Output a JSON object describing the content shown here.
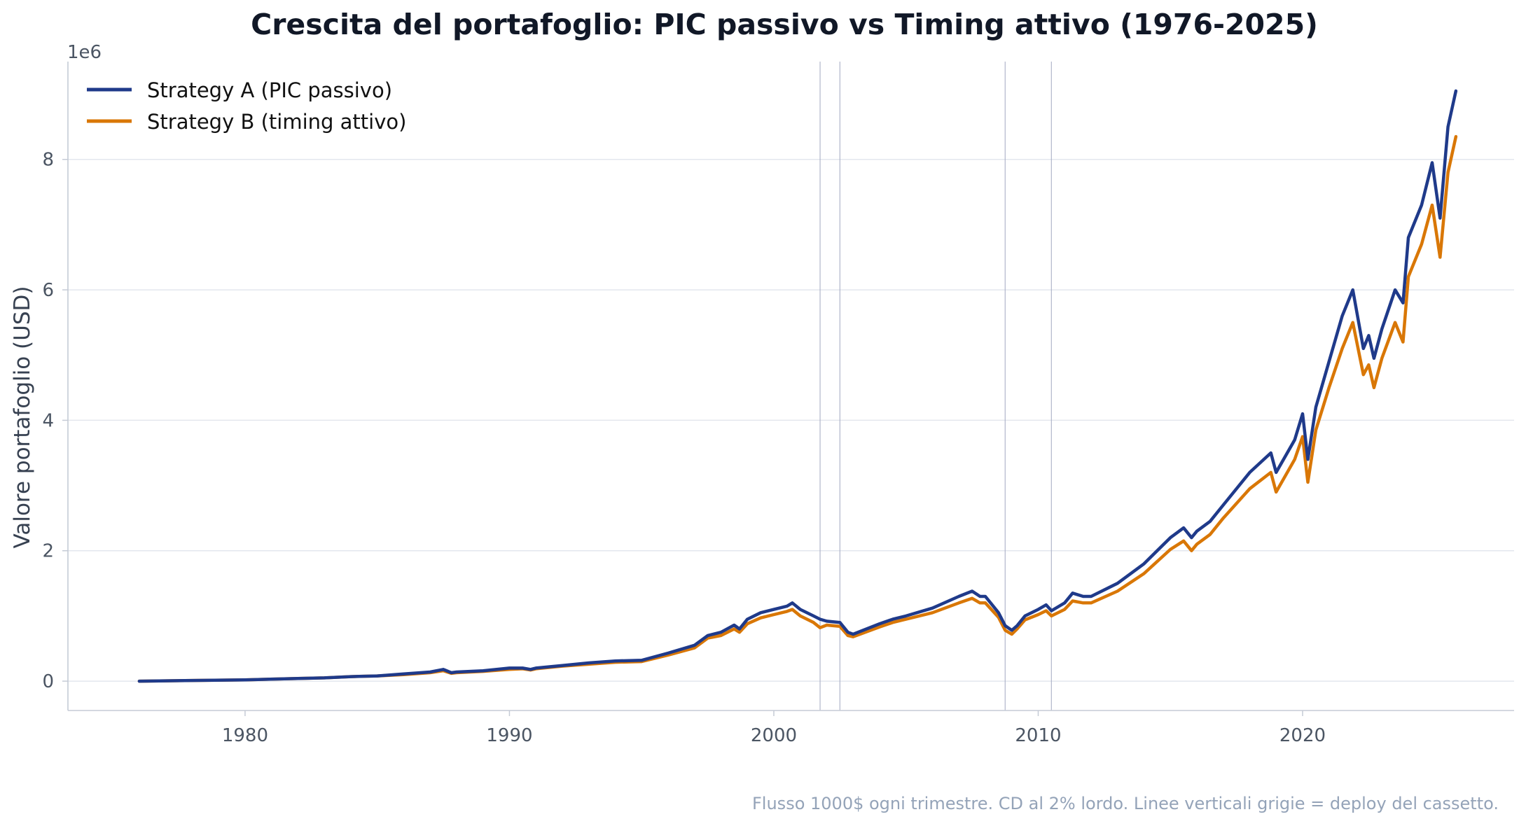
{
  "chart_data": {
    "type": "line",
    "title": "Crescita del portafoglio: PIC passivo vs Timing attivo (1976-2025)",
    "ylabel": "Valore portafoglio (USD)",
    "xlabel": "",
    "y_offset_label": "1e6",
    "xlim": [
      1973.3,
      2028.0
    ],
    "ylim": [
      -0.45,
      9.5
    ],
    "y_unit_multiplier": 1000000,
    "x_ticks": [
      1980,
      1990,
      2000,
      2010,
      2020
    ],
    "x_tick_labels": [
      "1980",
      "1990",
      "2000",
      "2010",
      "2020"
    ],
    "y_ticks": [
      0,
      2,
      4,
      6,
      8
    ],
    "y_tick_labels": [
      "0",
      "2",
      "4",
      "6",
      "8"
    ],
    "grid": "horizontal",
    "legend": "top-left",
    "vertical_lines": [
      2001.75,
      2002.5,
      2008.75,
      2010.5
    ],
    "footnote": "Flusso 1000$ ogni trimestre. CD al 2% lordo. Linee verticali grigie = deploy del cassetto.",
    "series": [
      {
        "name": "Strategy A (PIC passivo)",
        "color": "#1f3a8a",
        "x": [
          1976.0,
          1978.0,
          1980.0,
          1982.0,
          1983.0,
          1984.0,
          1985.0,
          1986.0,
          1987.0,
          1987.5,
          1987.8,
          1988.0,
          1989.0,
          1990.0,
          1990.5,
          1990.8,
          1991.0,
          1992.0,
          1993.0,
          1994.0,
          1995.0,
          1996.0,
          1997.0,
          1997.5,
          1998.0,
          1998.5,
          1998.7,
          1999.0,
          1999.5,
          2000.0,
          2000.5,
          2000.7,
          2001.0,
          2001.5,
          2001.75,
          2002.0,
          2002.5,
          2002.8,
          2003.0,
          2004.0,
          2004.5,
          2005.0,
          2006.0,
          2007.0,
          2007.5,
          2007.8,
          2008.0,
          2008.5,
          2008.75,
          2009.0,
          2009.2,
          2009.5,
          2010.0,
          2010.3,
          2010.5,
          2011.0,
          2011.3,
          2011.7,
          2012.0,
          2013.0,
          2014.0,
          2015.0,
          2015.5,
          2015.8,
          2016.0,
          2016.5,
          2017.0,
          2018.0,
          2018.8,
          2019.0,
          2019.7,
          2020.0,
          2020.2,
          2020.5,
          2021.0,
          2021.5,
          2021.9,
          2022.3,
          2022.5,
          2022.7,
          2023.0,
          2023.5,
          2023.8,
          2024.0,
          2024.5,
          2024.9,
          2025.2,
          2025.5,
          2025.8
        ],
        "values": [
          0.0,
          0.01,
          0.02,
          0.04,
          0.05,
          0.07,
          0.08,
          0.11,
          0.14,
          0.18,
          0.13,
          0.14,
          0.16,
          0.2,
          0.2,
          0.18,
          0.2,
          0.24,
          0.28,
          0.31,
          0.32,
          0.43,
          0.55,
          0.7,
          0.75,
          0.86,
          0.8,
          0.95,
          1.05,
          1.1,
          1.15,
          1.2,
          1.1,
          1.0,
          0.95,
          0.92,
          0.9,
          0.75,
          0.72,
          0.88,
          0.95,
          1.0,
          1.12,
          1.3,
          1.38,
          1.3,
          1.3,
          1.05,
          0.85,
          0.78,
          0.85,
          1.0,
          1.1,
          1.17,
          1.08,
          1.2,
          1.35,
          1.3,
          1.3,
          1.5,
          1.8,
          2.2,
          2.35,
          2.2,
          2.3,
          2.45,
          2.7,
          3.2,
          3.5,
          3.2,
          3.7,
          4.1,
          3.4,
          4.2,
          4.9,
          5.6,
          6.0,
          5.1,
          5.3,
          4.95,
          5.4,
          6.0,
          5.8,
          6.8,
          7.3,
          7.95,
          7.1,
          8.5,
          9.05
        ]
      },
      {
        "name": "Strategy B (timing attivo)",
        "color": "#d97706",
        "x": [
          1976.0,
          1978.0,
          1980.0,
          1982.0,
          1983.0,
          1984.0,
          1985.0,
          1986.0,
          1987.0,
          1987.5,
          1987.8,
          1988.0,
          1989.0,
          1990.0,
          1990.5,
          1990.8,
          1991.0,
          1992.0,
          1993.0,
          1994.0,
          1995.0,
          1996.0,
          1997.0,
          1997.5,
          1998.0,
          1998.5,
          1998.7,
          1999.0,
          1999.5,
          2000.0,
          2000.5,
          2000.7,
          2001.0,
          2001.5,
          2001.75,
          2002.0,
          2002.5,
          2002.8,
          2003.0,
          2004.0,
          2004.5,
          2005.0,
          2006.0,
          2007.0,
          2007.5,
          2007.8,
          2008.0,
          2008.5,
          2008.75,
          2009.0,
          2009.2,
          2009.5,
          2010.0,
          2010.3,
          2010.5,
          2011.0,
          2011.3,
          2011.7,
          2012.0,
          2013.0,
          2014.0,
          2015.0,
          2015.5,
          2015.8,
          2016.0,
          2016.5,
          2017.0,
          2018.0,
          2018.8,
          2019.0,
          2019.7,
          2020.0,
          2020.2,
          2020.5,
          2021.0,
          2021.5,
          2021.9,
          2022.3,
          2022.5,
          2022.7,
          2023.0,
          2023.5,
          2023.8,
          2024.0,
          2024.5,
          2024.9,
          2025.2,
          2025.5,
          2025.8
        ],
        "values": [
          0.0,
          0.01,
          0.02,
          0.04,
          0.05,
          0.07,
          0.08,
          0.1,
          0.13,
          0.16,
          0.12,
          0.13,
          0.15,
          0.18,
          0.19,
          0.17,
          0.19,
          0.23,
          0.26,
          0.29,
          0.3,
          0.4,
          0.51,
          0.66,
          0.7,
          0.8,
          0.75,
          0.88,
          0.97,
          1.02,
          1.07,
          1.1,
          1.0,
          0.9,
          0.82,
          0.86,
          0.84,
          0.7,
          0.68,
          0.83,
          0.9,
          0.95,
          1.05,
          1.2,
          1.27,
          1.2,
          1.2,
          0.98,
          0.78,
          0.72,
          0.8,
          0.94,
          1.02,
          1.08,
          1.0,
          1.1,
          1.23,
          1.2,
          1.2,
          1.38,
          1.65,
          2.02,
          2.15,
          2.0,
          2.1,
          2.25,
          2.5,
          2.95,
          3.2,
          2.9,
          3.4,
          3.75,
          3.05,
          3.85,
          4.5,
          5.1,
          5.5,
          4.7,
          4.85,
          4.5,
          4.95,
          5.5,
          5.2,
          6.2,
          6.7,
          7.3,
          6.5,
          7.8,
          8.35
        ]
      }
    ]
  }
}
